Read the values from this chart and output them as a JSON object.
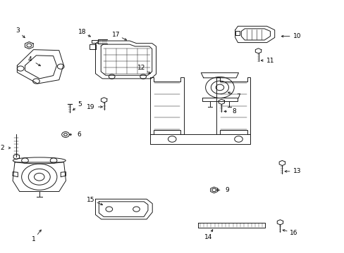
{
  "background_color": "#ffffff",
  "line_color": "#1a1a1a",
  "label_color": "#000000",
  "figsize": [
    4.89,
    3.6
  ],
  "dpi": 100,
  "labels": {
    "1": [
      0.115,
      0.098,
      0.1,
      0.072
    ],
    "2": [
      0.028,
      0.415,
      0.018,
      0.415
    ],
    "3": [
      0.068,
      0.845,
      0.055,
      0.862
    ],
    "4": [
      0.115,
      0.735,
      0.095,
      0.752
    ],
    "5": [
      0.198,
      0.558,
      0.21,
      0.572
    ],
    "6": [
      0.185,
      0.468,
      0.2,
      0.468
    ],
    "7": [
      0.652,
      0.64,
      0.67,
      0.63
    ],
    "8": [
      0.64,
      0.56,
      0.655,
      0.56
    ],
    "9": [
      0.618,
      0.248,
      0.635,
      0.248
    ],
    "10": [
      0.808,
      0.858,
      0.84,
      0.858
    ],
    "11": [
      0.748,
      0.762,
      0.762,
      0.762
    ],
    "12": [
      0.438,
      0.705,
      0.422,
      0.718
    ],
    "13": [
      0.818,
      0.322,
      0.84,
      0.322
    ],
    "14": [
      0.618,
      0.1,
      0.61,
      0.082
    ],
    "15": [
      0.298,
      0.185,
      0.275,
      0.198
    ],
    "16": [
      0.812,
      0.092,
      0.832,
      0.085
    ],
    "17": [
      0.368,
      0.838,
      0.348,
      0.852
    ],
    "18": [
      0.262,
      0.852,
      0.248,
      0.862
    ],
    "19": [
      0.298,
      0.578,
      0.278,
      0.578
    ]
  }
}
